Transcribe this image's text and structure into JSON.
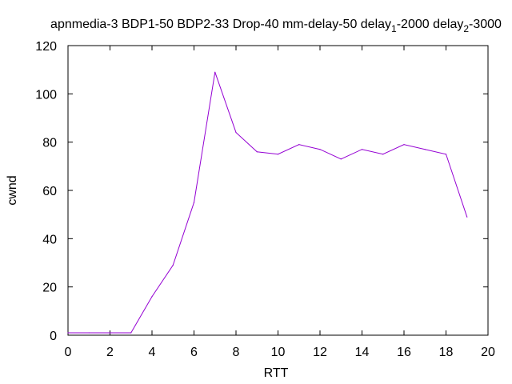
{
  "chart_data": {
    "type": "line",
    "title": {
      "main": "apnmedia-3 BDP1-50 BDP2-33 Drop-40 mm-delay-50 delay",
      "sub1": "1",
      "mid": "-2000 delay",
      "sub2": "2",
      "end": "-3000"
    },
    "xlabel": "RTT",
    "ylabel": "cwnd",
    "xlim": [
      0,
      20
    ],
    "ylim": [
      0,
      120
    ],
    "xticks": [
      0,
      2,
      4,
      6,
      8,
      10,
      12,
      14,
      16,
      18,
      20
    ],
    "yticks": [
      0,
      20,
      40,
      60,
      80,
      100,
      120
    ],
    "grid": false,
    "series": [
      {
        "color": "#9400d3",
        "x": [
          0,
          1,
          2,
          3,
          4,
          5,
          6,
          7,
          8,
          9,
          10,
          11,
          12,
          13,
          14,
          15,
          16,
          17,
          18,
          19
        ],
        "y": [
          1,
          1,
          1,
          1,
          16,
          29,
          55,
          109,
          84,
          76,
          75,
          79,
          77,
          73,
          77,
          75,
          79,
          77,
          75,
          49
        ]
      }
    ]
  }
}
